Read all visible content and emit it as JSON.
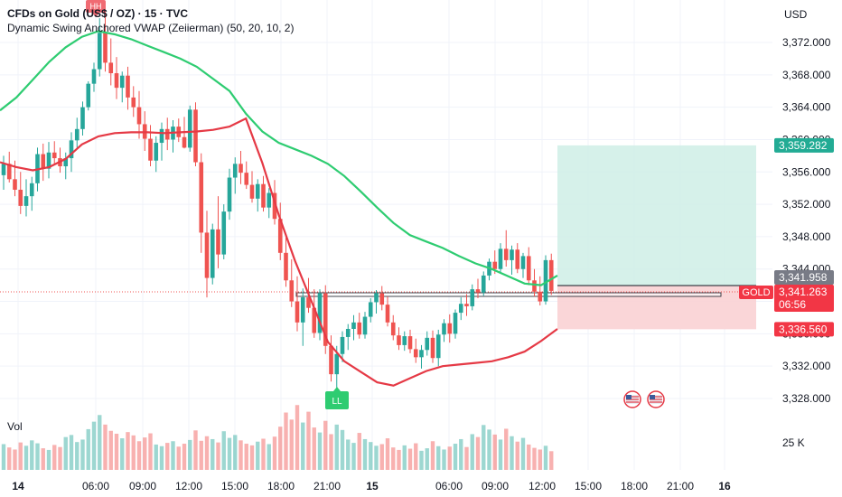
{
  "header": {
    "title": "CFDs on Gold (US$ / OZ) · 15 · TVC",
    "indicator": "Dynamic Swing Anchored VWAP (Zeiierman) (50, 20, 10, 2)",
    "currency": "USD"
  },
  "volume_label": "Vol",
  "colors": {
    "up": "#26a69a",
    "down": "#ef5350",
    "vwap_upper": "#2ecc71",
    "vwap_lower": "#e53945",
    "profit_zone": "#b2dfdb",
    "loss_zone": "#f8c5c8",
    "current_line": "#ef5350",
    "stop_label_bg": "#f23645",
    "target_label_bg": "#22ab94",
    "entry_label_bg": "#787b86"
  },
  "chart_data": {
    "type": "candlestick",
    "y_axis": {
      "ticks": [
        "3,372.000",
        "3,368.000",
        "3,364.000",
        "3,360.000",
        "3,356.000",
        "3,352.000",
        "3,348.000",
        "3,344.000",
        "3,340.000",
        "3,336.000",
        "3,332.000",
        "3,328.000"
      ],
      "tick_values": [
        3372,
        3368,
        3364,
        3360,
        3356,
        3352,
        3348,
        3344,
        3340,
        3336,
        3332,
        3328
      ],
      "range": [
        3326,
        3376.3
      ]
    },
    "x_axis": {
      "ticks": [
        "14",
        "06:00",
        "09:00",
        "12:00",
        "15:00",
        "18:00",
        "21:00",
        "15",
        "06:00",
        "09:00",
        "12:00",
        "15:00",
        "18:00",
        "21:00",
        "16"
      ],
      "bold_ticks": [
        "14",
        "15",
        "16"
      ]
    },
    "volume_axis": {
      "ticks": [
        "25 K"
      ]
    },
    "price_labels": {
      "target": "3,359.282",
      "entry": "3,341.958",
      "current_symbol": "GOLD",
      "current": "3,341.263",
      "countdown": "06:56",
      "stop": "3,336.560"
    },
    "position": {
      "target": 3359.282,
      "entry": 3341.958,
      "stop": 3336.56
    },
    "annotations": [
      "HH",
      "LL"
    ],
    "vwap_upper_values": [
      3363.6,
      3365.2,
      3367.4,
      3369.6,
      3371.4,
      3372.7,
      3373.4,
      3373.0,
      3372.4,
      3371.6,
      3370.8,
      3370.0,
      3369.0,
      3367.5,
      3366.0,
      3363.2,
      3361.0,
      3359.6,
      3358.8,
      3358.0,
      3357.0,
      3355.5,
      3353.6,
      3351.6,
      3349.7,
      3348.2,
      3347.4,
      3346.6,
      3345.6,
      3344.7,
      3344.0,
      3343.1,
      3342.2,
      3342.0,
      3343.2
    ],
    "vwap_lower_values": [
      3357.2,
      3356.6,
      3356.2,
      3356.6,
      3357.6,
      3359.4,
      3360.4,
      3360.8,
      3360.9,
      3360.9,
      3360.8,
      3360.9,
      3361.0,
      3361.2,
      3361.6,
      3362.6,
      3357.1,
      3350.7,
      3345.0,
      3340.0,
      3335.0,
      3332.6,
      3331.3,
      3330.0,
      3329.6,
      3330.5,
      3331.4,
      3332.0,
      3332.2,
      3332.4,
      3332.6,
      3333.1,
      3333.8,
      3335.1,
      3336.6
    ],
    "candles_ohlc": [
      [
        3355.6,
        3358.0,
        3353.8,
        3357.0
      ],
      [
        3357.0,
        3358.5,
        3354.7,
        3355.1
      ],
      [
        3355.1,
        3357.4,
        3353.0,
        3353.8
      ],
      [
        3353.8,
        3356.0,
        3350.8,
        3351.8
      ],
      [
        3351.8,
        3355.1,
        3350.5,
        3353.0
      ],
      [
        3353.0,
        3355.4,
        3351.2,
        3354.6
      ],
      [
        3354.6,
        3359.0,
        3353.6,
        3358.2
      ],
      [
        3358.2,
        3359.5,
        3354.9,
        3356.4
      ],
      [
        3356.4,
        3359.7,
        3355.2,
        3358.4
      ],
      [
        3358.4,
        3359.8,
        3357.0,
        3357.7
      ],
      [
        3357.7,
        3359.0,
        3355.9,
        3356.7
      ],
      [
        3356.7,
        3358.4,
        3355.1,
        3357.7
      ],
      [
        3357.7,
        3360.9,
        3356.0,
        3359.9
      ],
      [
        3359.9,
        3362.7,
        3359.0,
        3361.3
      ],
      [
        3361.3,
        3364.7,
        3360.5,
        3364.0
      ],
      [
        3364.0,
        3367.2,
        3363.6,
        3366.9
      ],
      [
        3366.9,
        3369.5,
        3365.9,
        3368.7
      ],
      [
        3368.7,
        3375.0,
        3367.8,
        3373.2
      ],
      [
        3373.2,
        3375.8,
        3368.4,
        3369.5
      ],
      [
        3369.5,
        3372.5,
        3366.7,
        3368.2
      ],
      [
        3368.2,
        3370.2,
        3365.0,
        3366.4
      ],
      [
        3366.4,
        3368.4,
        3364.6,
        3367.9
      ],
      [
        3367.9,
        3369.0,
        3363.7,
        3365.2
      ],
      [
        3365.2,
        3366.6,
        3362.8,
        3364.0
      ],
      [
        3364.0,
        3366.0,
        3360.1,
        3361.9
      ],
      [
        3361.9,
        3363.5,
        3358.6,
        3360.1
      ],
      [
        3360.1,
        3361.8,
        3356.7,
        3357.4
      ],
      [
        3357.4,
        3360.4,
        3356.0,
        3359.6
      ],
      [
        3359.6,
        3362.1,
        3357.4,
        3361.3
      ],
      [
        3361.3,
        3362.7,
        3358.7,
        3360.0
      ],
      [
        3360.0,
        3362.4,
        3358.4,
        3361.6
      ],
      [
        3361.6,
        3362.6,
        3359.7,
        3360.3
      ],
      [
        3360.3,
        3362.8,
        3358.9,
        3359.0
      ],
      [
        3359.0,
        3364.2,
        3358.5,
        3363.7
      ],
      [
        3363.7,
        3364.6,
        3356.7,
        3357.2
      ],
      [
        3357.2,
        3358.3,
        3346.0,
        3348.5
      ],
      [
        3348.5,
        3351.2,
        3340.5,
        3342.9
      ],
      [
        3342.9,
        3349.6,
        3342.1,
        3348.9
      ],
      [
        3348.9,
        3353.0,
        3344.1,
        3345.8
      ],
      [
        3345.8,
        3352.0,
        3345.2,
        3351.1
      ],
      [
        3351.1,
        3356.4,
        3350.1,
        3355.3
      ],
      [
        3355.3,
        3357.8,
        3353.3,
        3357.0
      ],
      [
        3357.0,
        3358.6,
        3354.5,
        3355.9
      ],
      [
        3355.9,
        3357.3,
        3353.9,
        3354.4
      ],
      [
        3354.4,
        3356.1,
        3352.2,
        3352.7
      ],
      [
        3352.7,
        3355.1,
        3351.1,
        3354.5
      ],
      [
        3354.5,
        3355.5,
        3351.1,
        3351.6
      ],
      [
        3351.6,
        3354.0,
        3350.3,
        3353.4
      ],
      [
        3353.4,
        3355.0,
        3349.5,
        3350.2
      ],
      [
        3350.2,
        3352.2,
        3345.1,
        3346.0
      ],
      [
        3346.0,
        3347.9,
        3341.8,
        3342.6
      ],
      [
        3342.6,
        3345.2,
        3339.3,
        3340.0
      ],
      [
        3340.0,
        3343.1,
        3336.3,
        3337.4
      ],
      [
        3337.4,
        3341.6,
        3334.5,
        3340.5
      ],
      [
        3340.5,
        3342.9,
        3338.6,
        3339.2
      ],
      [
        3339.2,
        3341.5,
        3335.5,
        3336.1
      ],
      [
        3336.1,
        3341.5,
        3335.2,
        3341.0
      ],
      [
        3341.0,
        3342.0,
        3333.5,
        3334.5
      ],
      [
        3334.5,
        3335.8,
        3330.1,
        3331.0
      ],
      [
        3331.0,
        3334.5,
        3329.3,
        3333.5
      ],
      [
        3333.5,
        3336.3,
        3332.5,
        3335.6
      ],
      [
        3335.6,
        3337.2,
        3334.0,
        3336.6
      ],
      [
        3336.6,
        3338.3,
        3335.2,
        3337.4
      ],
      [
        3337.4,
        3338.6,
        3335.4,
        3335.9
      ],
      [
        3335.9,
        3338.7,
        3335.4,
        3338.1
      ],
      [
        3338.1,
        3340.4,
        3337.4,
        3339.9
      ],
      [
        3339.9,
        3341.4,
        3338.5,
        3341.0
      ],
      [
        3341.0,
        3341.9,
        3338.9,
        3339.6
      ],
      [
        3339.6,
        3340.6,
        3336.9,
        3337.4
      ],
      [
        3337.4,
        3338.3,
        3335.2,
        3335.8
      ],
      [
        3335.8,
        3336.8,
        3334.0,
        3334.6
      ],
      [
        3334.6,
        3336.3,
        3333.9,
        3335.7
      ],
      [
        3335.7,
        3336.5,
        3333.6,
        3334.1
      ],
      [
        3334.1,
        3335.4,
        3332.4,
        3333.1
      ],
      [
        3333.1,
        3334.6,
        3331.7,
        3334.0
      ],
      [
        3334.0,
        3336.3,
        3333.3,
        3335.5
      ],
      [
        3335.5,
        3336.4,
        3332.4,
        3333.0
      ],
      [
        3333.0,
        3336.5,
        3332.0,
        3335.9
      ],
      [
        3335.9,
        3337.8,
        3335.0,
        3337.3
      ],
      [
        3337.3,
        3338.4,
        3334.9,
        3336.0
      ],
      [
        3336.0,
        3339.0,
        3335.4,
        3338.6
      ],
      [
        3338.6,
        3340.5,
        3337.7,
        3339.7
      ],
      [
        3339.7,
        3340.9,
        3338.2,
        3339.4
      ],
      [
        3339.4,
        3342.1,
        3338.9,
        3341.5
      ],
      [
        3341.5,
        3342.8,
        3340.4,
        3341.1
      ],
      [
        3341.1,
        3343.7,
        3340.7,
        3343.2
      ],
      [
        3343.2,
        3345.3,
        3342.6,
        3344.9
      ],
      [
        3344.9,
        3346.3,
        3343.4,
        3344.0
      ],
      [
        3344.0,
        3347.2,
        3343.5,
        3346.5
      ],
      [
        3346.5,
        3348.8,
        3344.3,
        3345.1
      ],
      [
        3345.1,
        3346.9,
        3343.3,
        3346.4
      ],
      [
        3346.4,
        3347.2,
        3343.5,
        3344.0
      ],
      [
        3344.0,
        3346.0,
        3342.9,
        3345.6
      ],
      [
        3345.6,
        3346.7,
        3342.0,
        3342.6
      ],
      [
        3342.6,
        3344.0,
        3340.6,
        3341.2
      ],
      [
        3341.2,
        3343.1,
        3339.5,
        3340.0
      ],
      [
        3340.0,
        3345.7,
        3339.6,
        3345.1
      ],
      [
        3345.1,
        3345.9,
        3340.8,
        3341.3
      ]
    ],
    "volume_values": [
      6.2,
      5.4,
      4.9,
      6.6,
      5.8,
      7.1,
      6.4,
      5.2,
      4.8,
      6.0,
      5.5,
      7.9,
      8.4,
      6.7,
      7.3,
      9.8,
      11.6,
      13.2,
      10.9,
      9.4,
      8.7,
      7.6,
      9.1,
      8.3,
      6.9,
      7.8,
      8.8,
      6.1,
      5.7,
      6.5,
      6.9,
      5.6,
      6.3,
      7.2,
      9.5,
      7.0,
      8.1,
      7.4,
      6.6,
      9.3,
      7.7,
      8.4,
      7.1,
      6.3,
      5.9,
      6.8,
      7.5,
      6.2,
      8.0,
      10.4,
      13.8,
      12.1,
      15.6,
      11.4,
      14.0,
      10.2,
      9.0,
      11.8,
      8.6,
      10.9,
      9.6,
      7.3,
      6.5,
      8.9,
      7.4,
      6.7,
      5.8,
      6.2,
      7.6,
      5.4,
      4.8,
      5.9,
      5.1,
      6.4,
      4.6,
      5.2,
      6.9,
      5.7,
      4.9,
      5.6,
      6.3,
      7.4,
      5.5,
      8.6,
      7.9,
      10.8,
      9.7,
      8.5,
      7.3,
      9.9,
      8.1,
      6.8,
      7.7,
      6.1,
      5.3,
      4.9,
      5.8,
      4.5
    ]
  }
}
